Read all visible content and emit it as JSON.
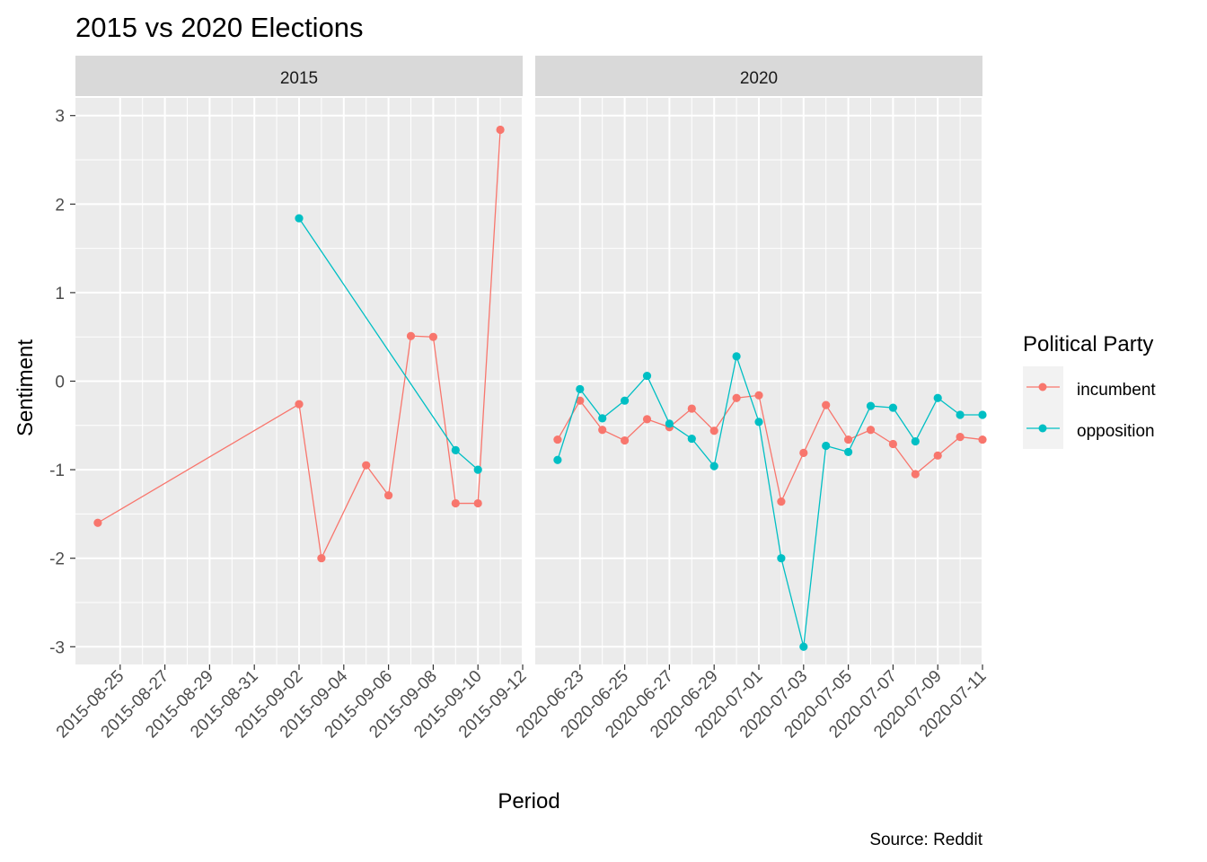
{
  "chart_data": {
    "type": "line",
    "title": "2015 vs 2020 Elections",
    "xlabel": "Period",
    "ylabel": "Sentiment",
    "caption": "Source: Reddit",
    "ylim": [
      -3.2,
      3.2
    ],
    "yticks": [
      -3,
      -2,
      -1,
      0,
      1,
      2,
      3
    ],
    "grid": true,
    "legend": {
      "title": "Political Party",
      "position": "right",
      "entries": [
        "incumbent",
        "opposition"
      ]
    },
    "colors": {
      "incumbent": "#F8766D",
      "opposition": "#00BFC4"
    },
    "panels": [
      {
        "label": "2015",
        "xlim": [
          "2015-08-23",
          "2015-09-12"
        ],
        "xticks": [
          "2015-08-25",
          "2015-08-27",
          "2015-08-29",
          "2015-08-31",
          "2015-09-02",
          "2015-09-04",
          "2015-09-06",
          "2015-09-08",
          "2015-09-10",
          "2015-09-12"
        ],
        "series": [
          {
            "name": "incumbent",
            "x": [
              "2015-08-24",
              "2015-09-02",
              "2015-09-03",
              "2015-09-05",
              "2015-09-06",
              "2015-09-07",
              "2015-09-08",
              "2015-09-09",
              "2015-09-10",
              "2015-09-11"
            ],
            "y": [
              -1.6,
              -0.26,
              -2.0,
              -0.95,
              -1.29,
              0.51,
              0.5,
              -1.38,
              -1.38,
              2.84
            ]
          },
          {
            "name": "opposition",
            "x": [
              "2015-09-02",
              "2015-09-09",
              "2015-09-10"
            ],
            "y": [
              1.84,
              -0.78,
              -1.0
            ]
          }
        ]
      },
      {
        "label": "2020",
        "xlim": [
          "2020-06-21",
          "2020-07-11"
        ],
        "xticks": [
          "2020-06-23",
          "2020-06-25",
          "2020-06-27",
          "2020-06-29",
          "2020-07-01",
          "2020-07-03",
          "2020-07-05",
          "2020-07-07",
          "2020-07-09",
          "2020-07-11"
        ],
        "series": [
          {
            "name": "incumbent",
            "x": [
              "2020-06-22",
              "2020-06-23",
              "2020-06-24",
              "2020-06-25",
              "2020-06-26",
              "2020-06-27",
              "2020-06-28",
              "2020-06-29",
              "2020-06-30",
              "2020-07-01",
              "2020-07-02",
              "2020-07-03",
              "2020-07-04",
              "2020-07-05",
              "2020-07-06",
              "2020-07-07",
              "2020-07-08",
              "2020-07-09",
              "2020-07-10",
              "2020-07-11"
            ],
            "y": [
              -0.66,
              -0.22,
              -0.55,
              -0.67,
              -0.43,
              -0.52,
              -0.31,
              -0.56,
              -0.19,
              -0.16,
              -1.36,
              -0.81,
              -0.27,
              -0.66,
              -0.55,
              -0.71,
              -1.05,
              -0.84,
              -0.63,
              -0.66
            ]
          },
          {
            "name": "opposition",
            "x": [
              "2020-06-22",
              "2020-06-23",
              "2020-06-24",
              "2020-06-25",
              "2020-06-26",
              "2020-06-27",
              "2020-06-28",
              "2020-06-29",
              "2020-06-30",
              "2020-07-01",
              "2020-07-02",
              "2020-07-03",
              "2020-07-04",
              "2020-07-05",
              "2020-07-06",
              "2020-07-07",
              "2020-07-08",
              "2020-07-09",
              "2020-07-10",
              "2020-07-11"
            ],
            "y": [
              -0.89,
              -0.09,
              -0.42,
              -0.22,
              0.06,
              -0.48,
              -0.65,
              -0.96,
              0.28,
              -0.46,
              -2.0,
              -3.0,
              -0.73,
              -0.8,
              -0.28,
              -0.3,
              -0.68,
              -0.19,
              -0.38,
              -0.38
            ]
          }
        ]
      }
    ]
  }
}
